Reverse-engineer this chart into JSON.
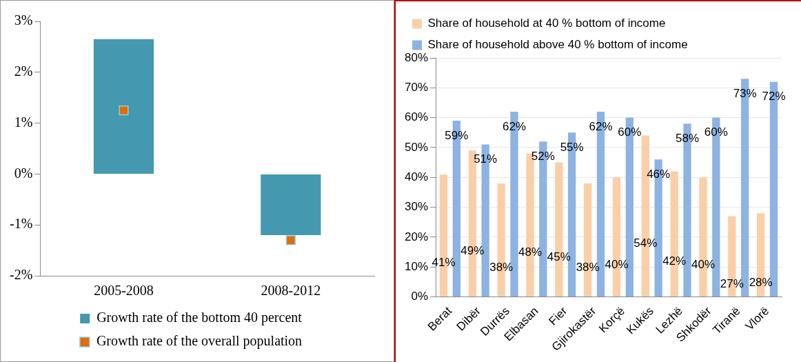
{
  "chart_data": [
    {
      "type": "bar",
      "categories": [
        "2005-2008",
        "2008-2012"
      ],
      "series": [
        {
          "name": "Growth rate of the bottom 40 percent",
          "color": "#4499b0",
          "values": [
            2.65,
            -1.2
          ]
        },
        {
          "name": "Growth rate of the overall population",
          "type": "scatter",
          "x": [
            "2005-2008",
            "2008-2012"
          ],
          "color": "#e36c0a",
          "values": [
            1.25,
            -1.3
          ]
        }
      ],
      "marker": "square",
      "ylim": [
        -2,
        3
      ],
      "yticks": [
        {
          "value": -2,
          "label": "-2%"
        },
        {
          "value": -1,
          "label": "-1%"
        },
        {
          "value": 0,
          "label": "0%"
        },
        {
          "value": 1,
          "label": "1%"
        },
        {
          "value": 2,
          "label": "2%"
        },
        {
          "value": 3,
          "label": "3%"
        }
      ],
      "grid": false,
      "legend": "bottom"
    },
    {
      "type": "bar",
      "categories": [
        "Berat",
        "Dibër",
        "Durrës",
        "Elbasan",
        "Fier",
        "Gjirokastër",
        "Korçë",
        "Kukës",
        "Lezhë",
        "Shkodër",
        "Tiranë",
        "Vlorë"
      ],
      "series": [
        {
          "name": "Share of household at 40 % bottom of income",
          "color": "#f9cfa8",
          "values": [
            41,
            49,
            38,
            48,
            45,
            38,
            40,
            54,
            42,
            40,
            27,
            28
          ],
          "value_labels": [
            "41%",
            "49%",
            "38%",
            "48%",
            "45%",
            "38%",
            "40%",
            "54%",
            "42%",
            "40%",
            "27%",
            "28%"
          ]
        },
        {
          "name": "Share of household above 40 % bottom of income",
          "color": "#8db3e2",
          "values": [
            59,
            51,
            62,
            52,
            55,
            62,
            60,
            46,
            58,
            60,
            73,
            72
          ],
          "value_labels": [
            "59%",
            "51%",
            "62%",
            "52%",
            "55%",
            "62%",
            "60%",
            "46%",
            "58%",
            "60%",
            "73%",
            "72%"
          ]
        }
      ],
      "ylim": [
        0,
        80
      ],
      "yticks": [
        {
          "value": 0,
          "label": "0%"
        },
        {
          "value": 10,
          "label": "10%"
        },
        {
          "value": 20,
          "label": "20%"
        },
        {
          "value": 30,
          "label": "30%"
        },
        {
          "value": 40,
          "label": "40%"
        },
        {
          "value": 50,
          "label": "50%"
        },
        {
          "value": 60,
          "label": "60%"
        },
        {
          "value": 70,
          "label": "70%"
        },
        {
          "value": 80,
          "label": "80%"
        }
      ],
      "grid": "y",
      "legend": "top left"
    }
  ]
}
